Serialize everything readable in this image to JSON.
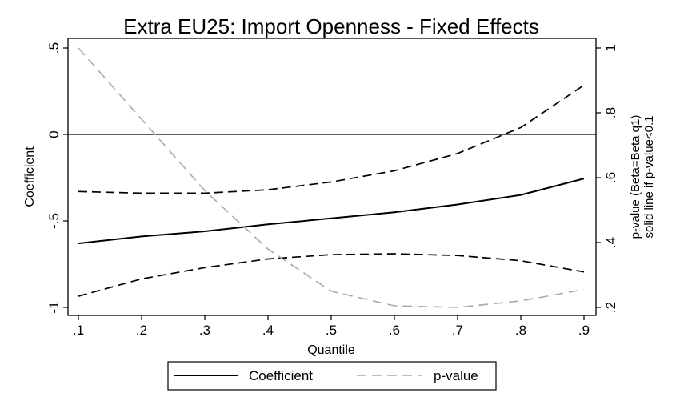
{
  "chart_data": {
    "type": "line",
    "title": "Extra EU25: Import Openness - Fixed Effects",
    "xlabel": "Quantile",
    "ylabel": "Coefficient",
    "y2label_line1": "p-value (Beta=Beta q1)",
    "y2label_line2": "solid line if p-value<0.1",
    "xlim": [
      0.1,
      0.9
    ],
    "ylim": [
      -1,
      0.5
    ],
    "y2lim": [
      0.2,
      1.0
    ],
    "x_ticks": [
      0.1,
      0.2,
      0.3,
      0.4,
      0.5,
      0.6,
      0.7,
      0.8,
      0.9
    ],
    "x_tick_labels": [
      ".1",
      ".2",
      ".3",
      ".4",
      ".5",
      ".6",
      ".7",
      ".8",
      ".9"
    ],
    "y_ticks": [
      0.5,
      0,
      -0.5,
      -1
    ],
    "y_tick_labels": [
      ".5",
      "0",
      "-.5",
      "-1"
    ],
    "y2_ticks": [
      1,
      0.8,
      0.6,
      0.4,
      0.2
    ],
    "y2_tick_labels": [
      "1",
      ".8",
      ".6",
      ".4",
      ".2"
    ],
    "reference_line_y": 0,
    "x": [
      0.1,
      0.2,
      0.3,
      0.4,
      0.5,
      0.6,
      0.7,
      0.8,
      0.9
    ],
    "series": [
      {
        "name": "Coefficient",
        "axis": "left",
        "style": "solid",
        "color": "#000000",
        "values": [
          -0.63,
          -0.59,
          -0.56,
          -0.52,
          -0.485,
          -0.45,
          -0.405,
          -0.35,
          -0.255
        ]
      },
      {
        "axis": "left",
        "style": "dashed",
        "color": "#000000",
        "values": [
          -0.33,
          -0.34,
          -0.34,
          -0.32,
          -0.275,
          -0.21,
          -0.11,
          0.04,
          0.285
        ]
      },
      {
        "axis": "left",
        "style": "dashed",
        "color": "#000000",
        "values": [
          -0.935,
          -0.835,
          -0.77,
          -0.72,
          -0.695,
          -0.69,
          -0.7,
          -0.73,
          -0.795
        ]
      },
      {
        "name": "p-value",
        "axis": "right",
        "style": "dashed",
        "color": "#aaaaaa",
        "values": [
          1.0,
          0.78,
          0.56,
          0.38,
          0.25,
          0.205,
          0.2,
          0.22,
          0.255
        ]
      }
    ],
    "legend": {
      "position": "bottom",
      "entries": [
        {
          "label": "Coefficient",
          "style": "solid",
          "color": "#000000"
        },
        {
          "label": "p-value",
          "style": "dashed",
          "color": "#aaaaaa"
        }
      ]
    },
    "grid": false
  }
}
